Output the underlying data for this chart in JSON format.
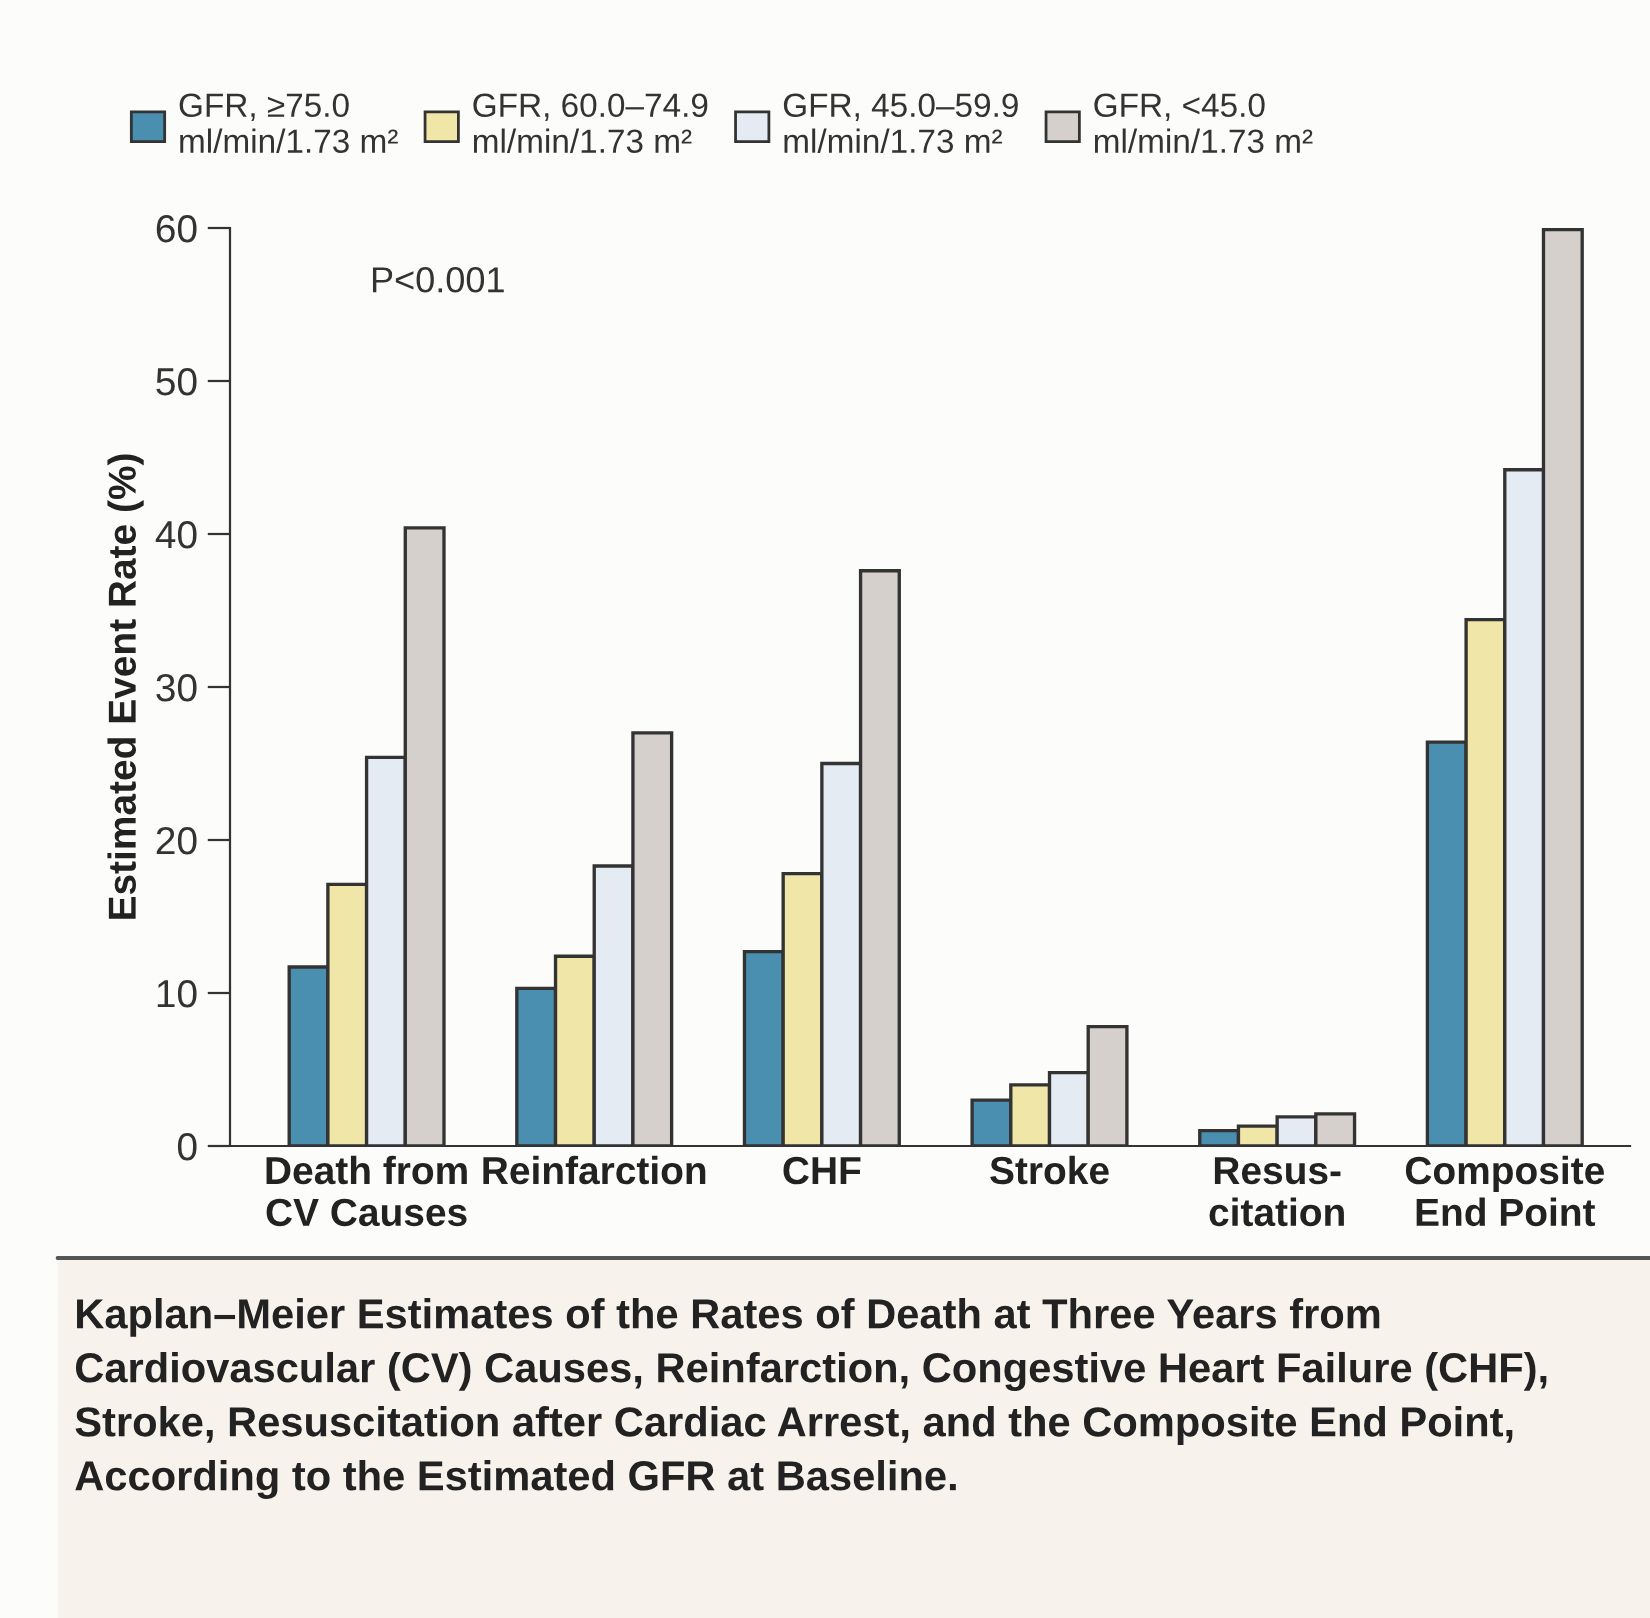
{
  "chart_data": {
    "type": "bar",
    "ylabel": "Estimated Event Rate (%)",
    "categories": [
      "Death from\nCV Causes",
      "Reinfarction",
      "CHF",
      "Stroke",
      "Resus-\ncitation",
      "Composite\nEnd Point"
    ],
    "series": [
      {
        "name": "GFR, ≥75.0\nml/min/1.73 m²",
        "color": "#4a8fb0",
        "values": [
          11.7,
          10.3,
          12.7,
          3.0,
          1.0,
          26.4
        ]
      },
      {
        "name": "GFR, 60.0–74.9\nml/min/1.73 m²",
        "color": "#f0e6a8",
        "values": [
          17.1,
          12.4,
          17.8,
          4.0,
          1.3,
          34.4
        ]
      },
      {
        "name": "GFR, 45.0–59.9\nml/min/1.73 m²",
        "color": "#e4ebf2",
        "values": [
          25.4,
          18.3,
          25.0,
          4.8,
          1.9,
          44.2
        ]
      },
      {
        "name": "GFR, <45.0\nml/min/1.73 m²",
        "color": "#d6d0cc",
        "values": [
          40.4,
          27.0,
          37.6,
          7.8,
          2.1,
          59.9
        ]
      }
    ],
    "ylim": [
      0,
      60
    ],
    "yticks": [
      0,
      10,
      20,
      30,
      40,
      50,
      60
    ],
    "grid": false,
    "legend": "top",
    "annotations": [
      "P<0.001",
      "Kaplan–Meier Estimates of the Rates of Death at Three Years from Cardiovascular (CV) Causes, Reinfarction, Congestive Heart Failure (CHF), Stroke, Resuscitation after Cardiac Arrest, and the Composite End Point, According to the Estimated GFR at Baseline."
    ]
  }
}
